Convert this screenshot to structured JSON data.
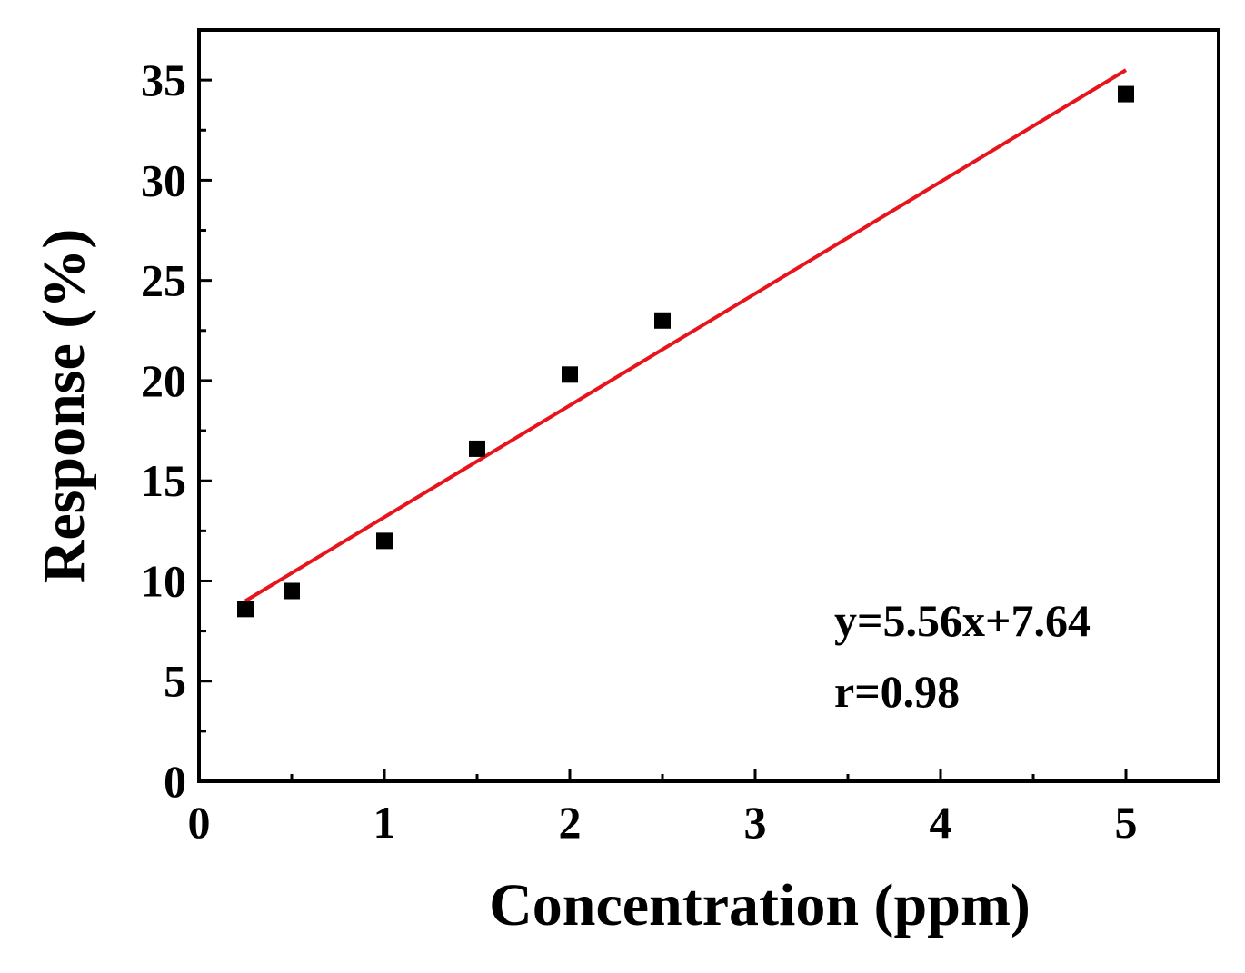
{
  "chart_data": {
    "type": "scatter",
    "title": "",
    "xlabel": "Concentration (ppm)",
    "ylabel": "Response (%)",
    "xlim": [
      0,
      5.5
    ],
    "ylim": [
      0,
      37.5
    ],
    "x_ticks": [
      {
        "value": 0,
        "label": "0"
      },
      {
        "value": 1,
        "label": "1"
      },
      {
        "value": 2,
        "label": "2"
      },
      {
        "value": 3,
        "label": "3"
      },
      {
        "value": 4,
        "label": "4"
      },
      {
        "value": 5,
        "label": "5"
      }
    ],
    "x_minor_ticks": [
      0.5,
      1.5,
      2.5,
      3.5,
      4.5
    ],
    "y_ticks": [
      {
        "value": 0,
        "label": "0"
      },
      {
        "value": 5,
        "label": "5"
      },
      {
        "value": 10,
        "label": "10"
      },
      {
        "value": 15,
        "label": "15"
      },
      {
        "value": 20,
        "label": "20"
      },
      {
        "value": 25,
        "label": "25"
      },
      {
        "value": 30,
        "label": "30"
      },
      {
        "value": 35,
        "label": "35"
      }
    ],
    "y_minor_ticks": [
      2.5,
      7.5,
      12.5,
      17.5,
      22.5,
      27.5,
      32.5
    ],
    "grid": false,
    "series": [
      {
        "type": "scatter",
        "marker": "square",
        "color": "#000000",
        "x": [
          0.25,
          0.5,
          1.0,
          1.5,
          2.0,
          2.5,
          5.0
        ],
        "y": [
          8.6,
          9.5,
          12.0,
          16.6,
          20.3,
          23.0,
          34.3
        ]
      },
      {
        "type": "line",
        "color": "#e8141c",
        "x": [
          0.25,
          5.0
        ],
        "y": [
          9.0,
          35.5
        ]
      }
    ],
    "annotations": [
      {
        "text": "y=5.56x+7.64"
      },
      {
        "text": "r=0.98"
      }
    ]
  }
}
